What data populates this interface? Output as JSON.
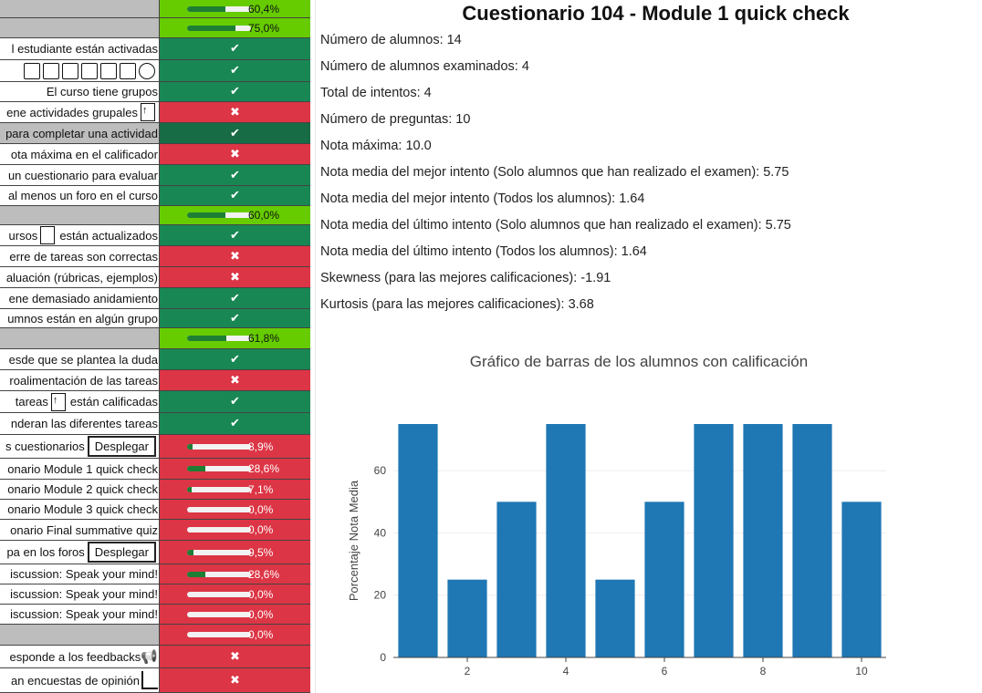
{
  "left_rows": [
    {
      "type": "prog",
      "label": "",
      "pct": "60,4%",
      "frac": 0.604,
      "bg": "lg",
      "labstyle": "grey"
    },
    {
      "type": "prog",
      "label": "",
      "pct": "75,0%",
      "frac": 0.75,
      "bg": "lg",
      "labstyle": "grey"
    },
    {
      "type": "check",
      "label": "l estudiante están activadas",
      "ok": true
    },
    {
      "type": "icons",
      "label": "",
      "ok": true
    },
    {
      "type": "check",
      "label": "El curso tiene grupos",
      "ok": true
    },
    {
      "type": "check",
      "label": "ene actividades grupales",
      "ok": false,
      "icon": "arrow"
    },
    {
      "type": "check",
      "label": "para completar una actividad",
      "ok": true,
      "dark": true,
      "labstyle": "hl"
    },
    {
      "type": "check",
      "label": "ota máxima en el calificador",
      "ok": false
    },
    {
      "type": "check",
      "label": "un cuestionario para evaluar",
      "ok": true
    },
    {
      "type": "check",
      "label": "al menos un foro en el curso",
      "ok": true
    },
    {
      "type": "prog",
      "label": "",
      "pct": "60,0%",
      "frac": 0.6,
      "bg": "lg",
      "labstyle": "grey"
    },
    {
      "type": "check",
      "label": "ursos",
      "label2": "están actualizados",
      "ok": true,
      "icon": "file"
    },
    {
      "type": "check",
      "label": "erre de tareas son correctas",
      "ok": false
    },
    {
      "type": "check",
      "label": "aluación (rúbricas, ejemplos)",
      "ok": false
    },
    {
      "type": "check",
      "label": "ene demasiado anidamiento",
      "ok": true
    },
    {
      "type": "check",
      "label": "umnos están en algún grupo",
      "ok": true
    },
    {
      "type": "prog",
      "label": "",
      "pct": "61,8%",
      "frac": 0.618,
      "bg": "lg",
      "labstyle": "grey"
    },
    {
      "type": "check",
      "label": "esde que se plantea la duda",
      "ok": true
    },
    {
      "type": "check",
      "label": "roalimentación de las tareas",
      "ok": false
    },
    {
      "type": "check",
      "label": " tareas",
      "label2": "están calificadas",
      "ok": true,
      "icon": "arrow"
    },
    {
      "type": "check",
      "label": "nderan las diferentes tareas",
      "ok": true
    },
    {
      "type": "prog",
      "label": "s cuestionarios",
      "pct": "8,9%",
      "frac": 0.089,
      "bg": "r",
      "button": true
    },
    {
      "type": "prog",
      "label": "onario Module 1 quick check",
      "pct": "28,6%",
      "frac": 0.286,
      "bg": "r"
    },
    {
      "type": "prog",
      "label": "onario Module 2 quick check",
      "pct": "7,1%",
      "frac": 0.071,
      "bg": "r"
    },
    {
      "type": "prog",
      "label": "onario Module 3 quick check",
      "pct": "0,0%",
      "frac": 0,
      "bg": "r"
    },
    {
      "type": "prog",
      "label": "onario Final summative quiz",
      "pct": "0,0%",
      "frac": 0,
      "bg": "r"
    },
    {
      "type": "prog",
      "label": "pa en los foros",
      "pct": "9,5%",
      "frac": 0.095,
      "bg": "r",
      "button": true
    },
    {
      "type": "prog",
      "label": "iscussion: Speak your mind!",
      "pct": "28,6%",
      "frac": 0.286,
      "bg": "r"
    },
    {
      "type": "prog",
      "label": "iscussion: Speak your mind!",
      "pct": "0,0%",
      "frac": 0,
      "bg": "r"
    },
    {
      "type": "prog",
      "label": "iscussion: Speak your mind!",
      "pct": "0,0%",
      "frac": 0,
      "bg": "r"
    },
    {
      "type": "prog",
      "label": "",
      "pct": "0,0%",
      "frac": 0,
      "bg": "r",
      "labstyle": "grey"
    },
    {
      "type": "check",
      "label": "esponde a los feedbacks",
      "ok": false,
      "icon": "speaker"
    },
    {
      "type": "check",
      "label": "an encuestas de opinión",
      "ok": false,
      "icon": "bars"
    }
  ],
  "ui": {
    "check_mark": "✔",
    "cross_mark": "✖",
    "deploy_label": "Desplegar"
  },
  "title": "Cuestionario 104 - Module 1 quick check",
  "stats": [
    "Número de alumnos: 14",
    "Número de alumnos examinados: 4",
    "Total de intentos: 4",
    "Número de preguntas: 10",
    "Nota máxima: 10.0",
    "Nota media del mejor intento (Solo alumnos que han realizado el examen): 5.75",
    "Nota media del mejor intento (Todos los alumnos): 1.64",
    "Nota media del último intento (Solo alumnos que han realizado el examen): 5.75",
    "Nota media del último intento (Todos los alumnos): 1.64",
    "Skewness (para las mejores calificaciones): -1.91",
    "Kurtosis (para las mejores calificaciones): 3.68"
  ],
  "colors": {
    "bar": "#1f77b4",
    "ok": "#198754",
    "fail": "#dc3545",
    "accent": "#66cc00"
  },
  "chart_data": {
    "type": "bar",
    "title": "Gráfico de barras de los alumnos con calificación",
    "xlabel": "",
    "ylabel": "Porcentaje Nota Media",
    "x": [
      1,
      2,
      3,
      4,
      5,
      6,
      7,
      8,
      9,
      10
    ],
    "values": [
      75,
      25,
      50,
      75,
      25,
      50,
      75,
      75,
      75,
      50
    ],
    "xticks": [
      2,
      4,
      6,
      8,
      10
    ],
    "yticks": [
      0,
      20,
      40,
      60
    ],
    "ylim": [
      0,
      75
    ],
    "grid": true
  }
}
